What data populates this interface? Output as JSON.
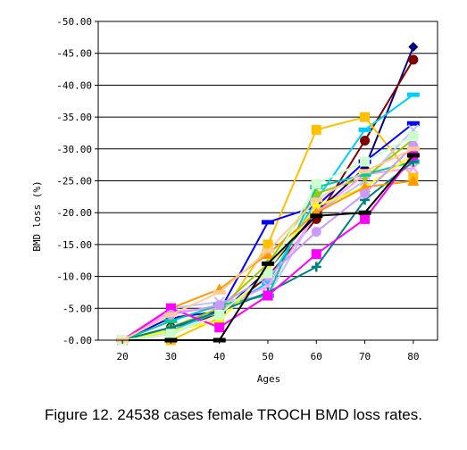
{
  "caption": "Figure 12. 24538 cases female TROCH BMD loss rates.",
  "chart_data": {
    "type": "line",
    "title": "",
    "xlabel": "Ages",
    "ylabel": "BMD loss (%)",
    "x": [
      20,
      30,
      40,
      50,
      60,
      70,
      80
    ],
    "x_tick_labels": [
      "20",
      "30",
      "40",
      "50",
      "60",
      "70",
      "80"
    ],
    "ylim": [
      0,
      -50
    ],
    "y_inverted": true,
    "y_ticks": [
      0,
      -5,
      -10,
      -15,
      -20,
      -25,
      -30,
      -35,
      -40,
      -45,
      -50
    ],
    "y_tick_labels": [
      "-0.00",
      "-5.00",
      "-10.00",
      "-15.00",
      "-20.00",
      "-25.00",
      "-30.00",
      "-35.00",
      "-40.00",
      "-45.00",
      "-50.00"
    ],
    "grid": "horizontal",
    "legend": "none",
    "series": [
      {
        "color": "#000080",
        "marker": "diamond",
        "values": [
          0,
          -1.0,
          -4.0,
          -11.0,
          -20.0,
          -27.0,
          -46.0
        ]
      },
      {
        "color": "#800000",
        "marker": "circle",
        "values": [
          0,
          -2.0,
          -4.0,
          -10.0,
          -19.0,
          -31.3,
          -44.0
        ]
      },
      {
        "color": "#00ccff",
        "marker": "dash",
        "values": [
          0,
          -1.5,
          -4.5,
          -9.0,
          -22.0,
          -33.0,
          -38.5
        ]
      },
      {
        "color": "#ffc000",
        "marker": "square",
        "values": [
          0,
          0,
          -3.5,
          -15.0,
          -33.0,
          -35.0,
          -25.5
        ]
      },
      {
        "color": "#0000ff",
        "marker": "dash",
        "values": [
          0,
          -3.5,
          -4.5,
          -18.5,
          -21.0,
          -28.0,
          -34.0
        ]
      },
      {
        "color": "#c0c0ff",
        "marker": "x",
        "values": [
          0,
          -5.0,
          -6.0,
          -7.0,
          -20.0,
          -25.0,
          -33.0
        ]
      },
      {
        "color": "#99cc00",
        "marker": "diamond",
        "values": [
          0,
          -2.0,
          -5.0,
          -12.0,
          -23.0,
          -25.5,
          -31.5
        ]
      },
      {
        "color": "#ff99ff",
        "marker": "x",
        "values": [
          0,
          -4.5,
          -5.0,
          -8.5,
          -20.0,
          -26.0,
          -27.0
        ]
      },
      {
        "color": "#00cc99",
        "marker": "dash",
        "values": [
          0,
          -3.0,
          -5.5,
          -7.0,
          -24.0,
          -26.0,
          -28.0
        ]
      },
      {
        "color": "#ffff00",
        "marker": "diamond",
        "values": [
          0,
          -1.5,
          -3.0,
          -11.0,
          -21.0,
          -24.0,
          -29.0
        ]
      },
      {
        "color": "#008080",
        "marker": "plus",
        "values": [
          0,
          -2.0,
          -4.5,
          -7.5,
          -11.5,
          -22.0,
          -28.0
        ]
      },
      {
        "color": "#ff9900",
        "marker": "triangle",
        "values": [
          0,
          -5.0,
          -8.0,
          -13.5,
          -20.0,
          -24.0,
          -25.0
        ]
      },
      {
        "color": "#ff00ff",
        "marker": "square",
        "values": [
          0,
          -5.0,
          -2.0,
          -7.0,
          -13.5,
          -19.0,
          -29.0
        ]
      },
      {
        "color": "#cc99ff",
        "marker": "circle",
        "values": [
          0,
          -4.0,
          -5.5,
          -10.0,
          -17.0,
          -23.0,
          -30.5
        ]
      },
      {
        "color": "#ccffcc",
        "marker": "square",
        "values": [
          0,
          -1.0,
          -4.0,
          -10.5,
          -24.5,
          -28.0,
          -32.0
        ]
      },
      {
        "color": "#000000",
        "marker": "dash",
        "values": [
          0,
          0,
          0,
          -12.0,
          -19.5,
          -20.0,
          -29.0
        ]
      },
      {
        "color": "#ffcc99",
        "marker": "dash",
        "values": [
          0,
          -4.0,
          -7.5,
          -14.0,
          -22.0,
          -26.5,
          -30.0
        ]
      }
    ]
  }
}
